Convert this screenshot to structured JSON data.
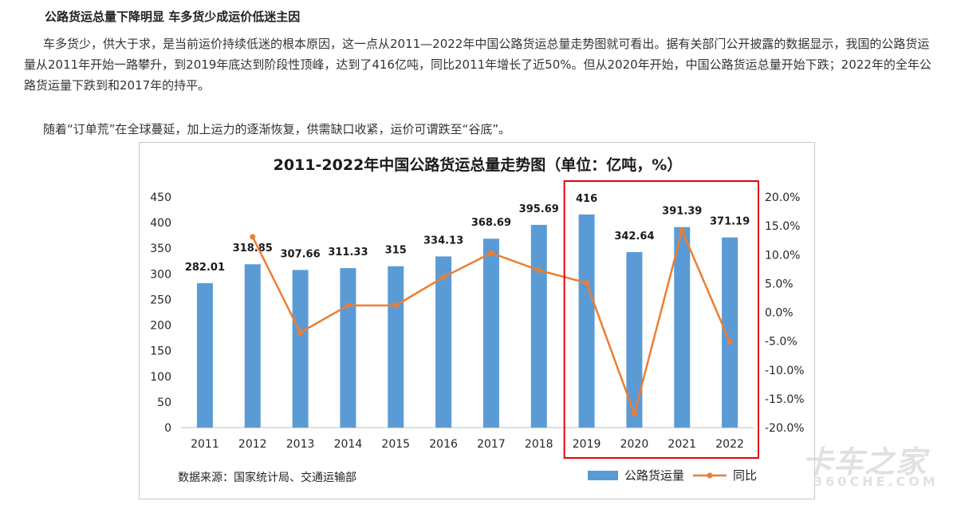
{
  "article": {
    "heading": "公路货运总量下降明显 车多货少成运价低迷主因",
    "paragraph1": "车多货少，供大于求，是当前运价持续低迷的根本原因，这一点从2011—2022年中国公路货运总量走势图就可看出。据有关部门公开披露的数据显示，我国的公路货运量从2011年开始一路攀升，到2019年底达到阶段性顶峰，达到了416亿吨，同比2011年增长了近50%。但从2020年开始，中国公路货运总量开始下跌；2022年的全年公路货运量下跌到和2017年的持平。",
    "paragraph2": "随着“订单荒”在全球蔓延，加上运力的逐渐恢复，供需缺口收紧，运价可谓跌至“谷底”。"
  },
  "chart_data": {
    "type": "bar",
    "title": "2011-2022年中国公路货运总量走势图（单位：亿吨，%）",
    "categories": [
      "2011",
      "2012",
      "2013",
      "2014",
      "2015",
      "2016",
      "2017",
      "2018",
      "2019",
      "2020",
      "2021",
      "2022"
    ],
    "series": [
      {
        "name": "公路货运量",
        "type": "bar",
        "axis": "left",
        "color": "#5b9bd5",
        "values": [
          282.01,
          318.85,
          307.66,
          311.33,
          315,
          334.13,
          368.69,
          395.69,
          416,
          342.64,
          391.39,
          371.19
        ],
        "labels": [
          "282.01",
          "318.85",
          "307.66",
          "311.33",
          "315",
          "334.13",
          "368.69",
          "395.69",
          "416",
          "342.64",
          "391.39",
          "371.19"
        ]
      },
      {
        "name": "同比",
        "type": "line",
        "axis": "right",
        "color": "#ed7d31",
        "values": [
          null,
          13.1,
          -3.5,
          1.2,
          1.2,
          6.1,
          10.3,
          7.3,
          5.1,
          -17.6,
          14.2,
          -5.1
        ]
      }
    ],
    "ylim_left": [
      0,
      450
    ],
    "yticks_left": [
      "0",
      "50",
      "100",
      "150",
      "200",
      "250",
      "300",
      "350",
      "400",
      "450"
    ],
    "ylim_right": [
      -20,
      20
    ],
    "yticks_right": [
      "-20.0%",
      "-15.0%",
      "-10.0%",
      "-5.0%",
      "0.0%",
      "5.0%",
      "10.0%",
      "15.0%",
      "20.0%"
    ],
    "grid": false,
    "legend": "bottom-right",
    "source_note": "数据来源：国家统计局、交通运输部",
    "highlight_color": "#e60012"
  },
  "watermark": {
    "text": "卡车之家",
    "subtext": "360CHE.COM"
  }
}
